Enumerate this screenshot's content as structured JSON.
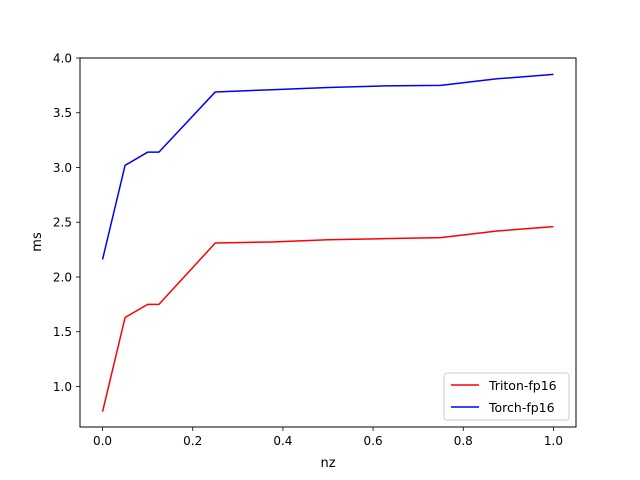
{
  "chart_data": {
    "type": "line",
    "title": "",
    "xlabel": "nz",
    "ylabel": "ms",
    "xlim": [
      -0.05,
      1.05
    ],
    "ylim": [
      0.63,
      4.0
    ],
    "xticks": [
      0.0,
      0.2,
      0.4,
      0.6,
      0.8,
      1.0
    ],
    "xtick_labels": [
      "0.0",
      "0.2",
      "0.4",
      "0.6",
      "0.8",
      "1.0"
    ],
    "yticks": [
      1.0,
      1.5,
      2.0,
      2.5,
      3.0,
      3.5,
      4.0
    ],
    "ytick_labels": [
      "1.0",
      "1.5",
      "2.0",
      "2.5",
      "3.0",
      "3.5",
      "4.0"
    ],
    "grid": false,
    "legend_position": "lower-right",
    "series": [
      {
        "name": "Triton-fp16",
        "color": "#ff0000",
        "x": [
          0.0,
          0.05,
          0.1,
          0.125,
          0.25,
          0.375,
          0.5,
          0.625,
          0.75,
          0.875,
          1.0
        ],
        "y": [
          0.77,
          1.63,
          1.75,
          1.75,
          2.31,
          2.32,
          2.34,
          2.35,
          2.36,
          2.42,
          2.46
        ]
      },
      {
        "name": "Torch-fp16",
        "color": "#0000ff",
        "x": [
          0.0,
          0.05,
          0.1,
          0.125,
          0.25,
          0.375,
          0.5,
          0.625,
          0.75,
          0.875,
          1.0
        ],
        "y": [
          2.16,
          3.02,
          3.14,
          3.14,
          3.69,
          3.71,
          3.73,
          3.745,
          3.75,
          3.81,
          3.85
        ]
      }
    ]
  }
}
